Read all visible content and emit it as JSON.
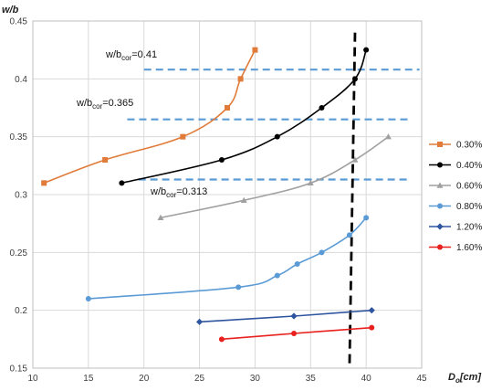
{
  "chart_data": {
    "type": "line",
    "title": "",
    "xlabel": {
      "main": "D",
      "sub": "o",
      "unit": "[cm]"
    },
    "ylabel": "w/b",
    "xlim": [
      10,
      45
    ],
    "ylim": [
      0.15,
      0.45
    ],
    "x_ticks": [
      10,
      15,
      20,
      25,
      30,
      35,
      40,
      45
    ],
    "y_ticks": [
      0.15,
      0.2,
      0.25,
      0.3,
      0.35,
      0.4,
      0.45
    ],
    "y_tick_labels": [
      "0.15",
      "0.2",
      "0.25",
      "0.3",
      "0.35",
      "0.4",
      "0.45"
    ],
    "grid": "horizontal-and-vertical",
    "legend_position": "right",
    "series": [
      {
        "name": "0.30%",
        "color": "#E07B39",
        "marker": "square",
        "x": [
          11,
          16.5,
          23.5,
          27.5,
          28.7,
          30
        ],
        "y": [
          0.31,
          0.33,
          0.35,
          0.375,
          0.4,
          0.425
        ]
      },
      {
        "name": "0.40%",
        "color": "#000000",
        "marker": "circle",
        "x": [
          18,
          27,
          32,
          36,
          39,
          40
        ],
        "y": [
          0.31,
          0.33,
          0.35,
          0.375,
          0.4,
          0.425
        ]
      },
      {
        "name": "0.60%",
        "color": "#A0A0A0",
        "marker": "triangle",
        "x": [
          21.5,
          29,
          35,
          39,
          42
        ],
        "y": [
          0.28,
          0.295,
          0.31,
          0.33,
          0.35
        ]
      },
      {
        "name": "0.80%",
        "color": "#5B9BD5",
        "marker": "circle",
        "x": [
          15,
          28.5,
          32,
          33.8,
          36,
          38.5,
          40
        ],
        "y": [
          0.21,
          0.22,
          0.23,
          0.24,
          0.25,
          0.265,
          0.28
        ]
      },
      {
        "name": "1.20%",
        "color": "#2F55A0",
        "marker": "diamond",
        "x": [
          25,
          33.5,
          40.5
        ],
        "y": [
          0.19,
          0.195,
          0.2
        ]
      },
      {
        "name": "1.60%",
        "color": "#E8211E",
        "marker": "circle",
        "x": [
          27,
          33.5,
          40.5
        ],
        "y": [
          0.175,
          0.18,
          0.185
        ]
      }
    ],
    "reference_lines": [
      {
        "orientation": "horizontal",
        "y": 0.408,
        "x_range": [
          20,
          44.8
        ],
        "color": "#5B9BD5",
        "style": "dashed",
        "label": {
          "prefix": "w/b",
          "sub": "cor",
          "value": "=0.41"
        }
      },
      {
        "orientation": "horizontal",
        "y": 0.365,
        "x_range": [
          18.5,
          44
        ],
        "color": "#5B9BD5",
        "style": "dashed",
        "label": {
          "prefix": "w/b",
          "sub": "cor",
          "value": "=0.365"
        }
      },
      {
        "orientation": "horizontal",
        "y": 0.313,
        "x_range": [
          19.5,
          44
        ],
        "color": "#5B9BD5",
        "style": "dashed",
        "label": {
          "prefix": "w/b",
          "sub": "cor",
          "value": "=0.313"
        }
      },
      {
        "orientation": "vertical",
        "x0": 39.0,
        "x1": 38.5,
        "y_range": [
          0.15,
          0.44
        ],
        "color": "#000000",
        "style": "dashed"
      }
    ]
  }
}
